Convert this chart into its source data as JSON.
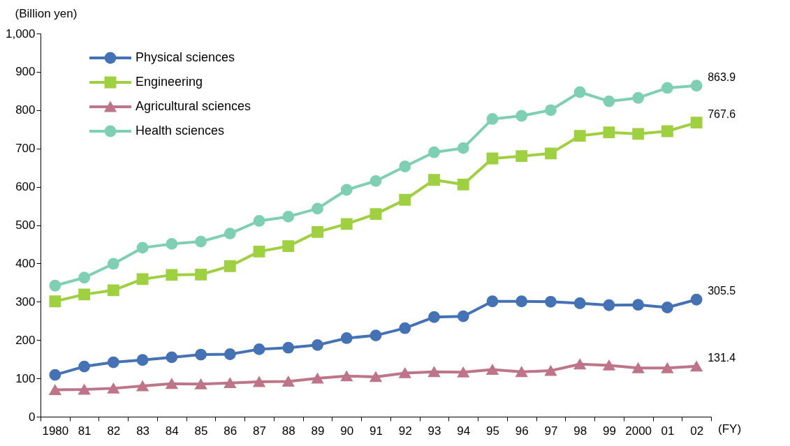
{
  "chart_data": {
    "type": "line",
    "ylabel": "(Billion yen)",
    "xlabel": "(FY)",
    "categories": [
      "1980",
      "81",
      "82",
      "83",
      "84",
      "85",
      "86",
      "87",
      "88",
      "89",
      "90",
      "91",
      "92",
      "93",
      "94",
      "95",
      "96",
      "97",
      "98",
      "99",
      "2000",
      "01",
      "02"
    ],
    "ylim": [
      0,
      1000
    ],
    "yticks": [
      0,
      100,
      200,
      300,
      400,
      500,
      600,
      700,
      800,
      900,
      {
        "value": 1000,
        "label": "1,000"
      }
    ],
    "grid": false,
    "legend": "top left",
    "line_style": "solid",
    "series": [
      {
        "name": "Physical sciences",
        "color": "#4472b4",
        "marker": "circle",
        "values": [
          109,
          131,
          142,
          148,
          155,
          162,
          163,
          176,
          180,
          187,
          205,
          212,
          231,
          260,
          262,
          301,
          301,
          300,
          296,
          291,
          292,
          285,
          305.5
        ],
        "value_labels": [
          null,
          null,
          null,
          null,
          null,
          null,
          null,
          null,
          null,
          null,
          null,
          null,
          null,
          null,
          null,
          null,
          null,
          null,
          null,
          null,
          null,
          null,
          "305.5"
        ]
      },
      {
        "name": "Engineering",
        "color": "#9fd041",
        "marker": "square",
        "values": [
          301,
          319,
          330,
          359,
          370,
          371,
          393,
          431,
          445,
          482,
          503,
          529,
          566,
          618,
          606,
          674,
          680,
          687,
          733,
          742,
          738,
          745,
          767.6
        ],
        "value_labels": [
          null,
          null,
          null,
          null,
          null,
          null,
          null,
          null,
          null,
          null,
          null,
          null,
          null,
          null,
          null,
          null,
          null,
          null,
          null,
          null,
          null,
          null,
          "767.6"
        ]
      },
      {
        "name": "Agricultural sciences",
        "color": "#be7489",
        "marker": "triangle",
        "values": [
          70,
          71,
          74,
          80,
          86,
          85,
          88,
          91,
          92,
          100,
          106,
          104,
          114,
          117,
          116,
          123,
          117,
          120,
          137,
          134,
          127,
          127,
          131.4
        ],
        "value_labels": [
          null,
          null,
          null,
          null,
          null,
          null,
          null,
          null,
          null,
          null,
          null,
          null,
          null,
          null,
          null,
          null,
          null,
          null,
          null,
          null,
          null,
          null,
          "131.4"
        ]
      },
      {
        "name": "Health sciences",
        "color": "#7fcfb4",
        "marker": "circle",
        "values": [
          342,
          363,
          399,
          441,
          451,
          457,
          478,
          511,
          522,
          543,
          592,
          615,
          653,
          690,
          701,
          777,
          785,
          800,
          847,
          823,
          832,
          858,
          863.9
        ],
        "value_labels": [
          null,
          null,
          null,
          null,
          null,
          null,
          null,
          null,
          null,
          null,
          null,
          null,
          null,
          null,
          null,
          null,
          null,
          null,
          null,
          null,
          null,
          null,
          "863.9"
        ]
      }
    ]
  }
}
